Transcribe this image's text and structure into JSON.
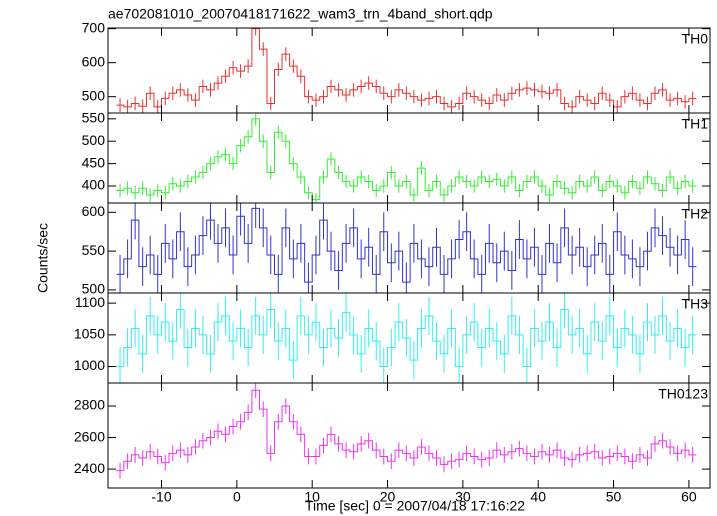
{
  "chart_data": [
    {
      "type": "step",
      "title": "ae702081010_20070418171622_wam3_trn_4band_short.qdp",
      "label": "TH0",
      "color": "#e83030",
      "yerr": 20,
      "x": [
        -15.5,
        -14.5,
        -13.5,
        -12.5,
        -11.5,
        -10.5,
        -9.5,
        -8.5,
        -7.5,
        -6.5,
        -5.5,
        -4.5,
        -3.5,
        -2.5,
        -1.5,
        -0.5,
        0.5,
        1.5,
        2.5,
        3.5,
        4.5,
        5.5,
        6.5,
        7.5,
        8.5,
        9.5,
        10.5,
        11.5,
        12.5,
        13.5,
        14.5,
        15.5,
        16.5,
        17.5,
        18.5,
        19.5,
        20.5,
        21.5,
        22.5,
        23.5,
        24.5,
        25.5,
        26.5,
        27.5,
        28.5,
        29.5,
        30.5,
        31.5,
        32.5,
        33.5,
        34.5,
        35.5,
        36.5,
        37.5,
        38.5,
        39.5,
        40.5,
        41.5,
        42.5,
        43.5,
        44.5,
        45.5,
        46.5,
        47.5,
        48.5,
        49.5,
        50.5,
        51.5,
        52.5,
        53.5,
        54.5,
        55.5,
        56.5,
        57.5,
        58.5,
        59.5,
        60.5
      ],
      "values": [
        475,
        470,
        480,
        472,
        510,
        470,
        495,
        510,
        520,
        505,
        490,
        530,
        520,
        540,
        560,
        585,
        575,
        590,
        700,
        640,
        480,
        580,
        625,
        590,
        560,
        500,
        490,
        500,
        530,
        520,
        505,
        520,
        530,
        540,
        530,
        510,
        500,
        520,
        510,
        500,
        490,
        495,
        500,
        480,
        470,
        480,
        510,
        500,
        490,
        480,
        505,
        490,
        510,
        520,
        525,
        520,
        515,
        510,
        520,
        480,
        470,
        500,
        490,
        480,
        510,
        490,
        470,
        500,
        510,
        490,
        480,
        510,
        520,
        490,
        495,
        485,
        495
      ],
      "ylim": [
        452,
        702
      ],
      "yticks": [
        500,
        600,
        700
      ]
    },
    {
      "type": "step",
      "label": "TH1",
      "color": "#33ee33",
      "yerr": 15,
      "values": [
        390,
        395,
        385,
        395,
        380,
        390,
        385,
        405,
        400,
        410,
        420,
        430,
        450,
        465,
        470,
        450,
        490,
        510,
        550,
        500,
        430,
        520,
        500,
        450,
        420,
        385,
        370,
        420,
        460,
        430,
        410,
        400,
        420,
        410,
        390,
        400,
        430,
        400,
        410,
        380,
        440,
        390,
        410,
        380,
        400,
        420,
        410,
        400,
        420,
        410,
        415,
        400,
        420,
        390,
        410,
        420,
        400,
        380,
        410,
        395,
        385,
        410,
        400,
        420,
        390,
        410,
        400,
        385,
        410,
        395,
        420,
        405,
        390,
        420,
        395,
        410,
        400
      ],
      "ylim": [
        362,
        563
      ],
      "yticks": [
        400,
        450,
        500,
        550
      ]
    },
    {
      "type": "step",
      "label": "TH2",
      "color": "#3333cc",
      "yerr": 25,
      "ylabel": "Counts/sec",
      "values": [
        520,
        540,
        590,
        530,
        545,
        520,
        560,
        540,
        575,
        530,
        545,
        570,
        590,
        560,
        580,
        545,
        595,
        560,
        605,
        580,
        545,
        520,
        580,
        540,
        560,
        510,
        545,
        590,
        550,
        525,
        560,
        580,
        540,
        555,
        520,
        575,
        535,
        550,
        510,
        560,
        540,
        530,
        555,
        520,
        540,
        565,
        575,
        540,
        520,
        560,
        535,
        550,
        525,
        565,
        540,
        555,
        520,
        560,
        535,
        580,
        545,
        555,
        530,
        545,
        560,
        520,
        575,
        545,
        540,
        530,
        550,
        580,
        570,
        555,
        545,
        565,
        530
      ],
      "ylim": [
        496,
        612
      ],
      "yticks": [
        500,
        550,
        600
      ]
    },
    {
      "type": "step",
      "label": "TH3",
      "color": "#33eeee",
      "yerr": 30,
      "values": [
        1000,
        1030,
        1060,
        1020,
        1080,
        1050,
        1070,
        1040,
        1090,
        1030,
        1060,
        1050,
        1020,
        1070,
        1080,
        1040,
        1060,
        1030,
        1080,
        1050,
        1090,
        1040,
        1060,
        1010,
        1080,
        1050,
        1070,
        1030,
        1060,
        1045,
        1085,
        1050,
        1020,
        1060,
        1040,
        1000,
        1030,
        1070,
        1045,
        1010,
        1060,
        1080,
        1040,
        1020,
        1060,
        1000,
        1050,
        1070,
        1030,
        1060,
        1040,
        1020,
        1080,
        1050,
        1000,
        1060,
        1040,
        1070,
        1030,
        1090,
        1050,
        1060,
        1020,
        1070,
        1040,
        1080,
        1030,
        1060,
        1050,
        1020,
        1070,
        1050,
        1080,
        1040,
        1060,
        1030,
        1050
      ],
      "ylim": [
        974,
        1116
      ],
      "yticks": [
        1000,
        1050,
        1100
      ]
    },
    {
      "type": "step",
      "label": "TH0123",
      "color": "#ee33ee",
      "yerr": 50,
      "xlabel": "Time [sec] 0 = 2007/04/18 17:16:22",
      "values": [
        2390,
        2450,
        2490,
        2470,
        2510,
        2480,
        2440,
        2500,
        2520,
        2490,
        2540,
        2580,
        2600,
        2640,
        2620,
        2670,
        2700,
        2760,
        2900,
        2780,
        2500,
        2700,
        2800,
        2700,
        2620,
        2480,
        2480,
        2550,
        2620,
        2560,
        2520,
        2510,
        2560,
        2580,
        2520,
        2480,
        2450,
        2520,
        2500,
        2470,
        2540,
        2500,
        2470,
        2430,
        2450,
        2460,
        2500,
        2480,
        2460,
        2470,
        2520,
        2490,
        2510,
        2530,
        2500,
        2480,
        2510,
        2490,
        2520,
        2470,
        2460,
        2490,
        2500,
        2510,
        2470,
        2480,
        2500,
        2480,
        2450,
        2490,
        2470,
        2560,
        2580,
        2540,
        2500,
        2520,
        2490
      ],
      "ylim": [
        2280,
        2946
      ],
      "yticks": [
        2400,
        2600,
        2800
      ],
      "xlim": [
        -17.1,
        62.8
      ],
      "xticks": [
        -10,
        0,
        10,
        20,
        30,
        40,
        50,
        60
      ]
    }
  ]
}
